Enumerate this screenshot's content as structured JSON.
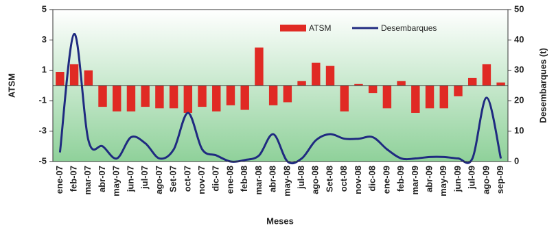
{
  "chart_data": {
    "type": "bar-line",
    "categories": [
      "ene-07",
      "feb-07",
      "mar-07",
      "abr-07",
      "may-07",
      "jun-07",
      "jul-07",
      "ago-07",
      "Set-07",
      "oct-07",
      "nov-07",
      "dic-07",
      "ene-08",
      "feb-08",
      "mar-08",
      "abr-08",
      "may-08",
      "jul-08",
      "ago-08",
      "Set-08",
      "oct-08",
      "nov-08",
      "dic-08",
      "ene-09",
      "feb-09",
      "mar-09",
      "abr-09",
      "may-09",
      "jun-09",
      "jul-09",
      "ago-09",
      "sep-09"
    ],
    "series": [
      {
        "name": "ATSM",
        "type": "bar",
        "color": "#e02a24",
        "values": [
          0.9,
          1.4,
          1.0,
          -1.4,
          -1.7,
          -1.7,
          -1.4,
          -1.5,
          -1.5,
          -1.8,
          -1.4,
          -1.7,
          -1.3,
          -1.6,
          2.5,
          -1.3,
          -1.1,
          0.3,
          1.5,
          1.3,
          -1.7,
          0.1,
          -0.5,
          -1.5,
          0.3,
          -1.8,
          -1.5,
          -1.5,
          -0.7,
          0.5,
          1.4,
          0.2
        ]
      },
      {
        "name": "Desembarques",
        "type": "line",
        "axis": "y2",
        "color": "#1f2a80",
        "values": [
          3,
          42,
          7,
          5,
          1,
          8,
          6,
          1,
          4,
          16,
          4,
          2,
          0,
          0.5,
          2,
          9,
          0,
          1,
          7,
          9,
          7.5,
          7.5,
          8,
          4,
          1,
          1,
          1.5,
          1.5,
          1,
          1,
          21,
          1
        ]
      }
    ],
    "ylabel": "ATSM",
    "y2label": "Desembarques (t)",
    "xlabel": "Meses",
    "ylim": [
      -5,
      5
    ],
    "yticks": [
      5,
      3,
      1,
      -1,
      -3,
      -5
    ],
    "y2lim": [
      0,
      50
    ],
    "y2ticks": [
      0,
      10,
      20,
      30,
      40,
      50
    ]
  }
}
